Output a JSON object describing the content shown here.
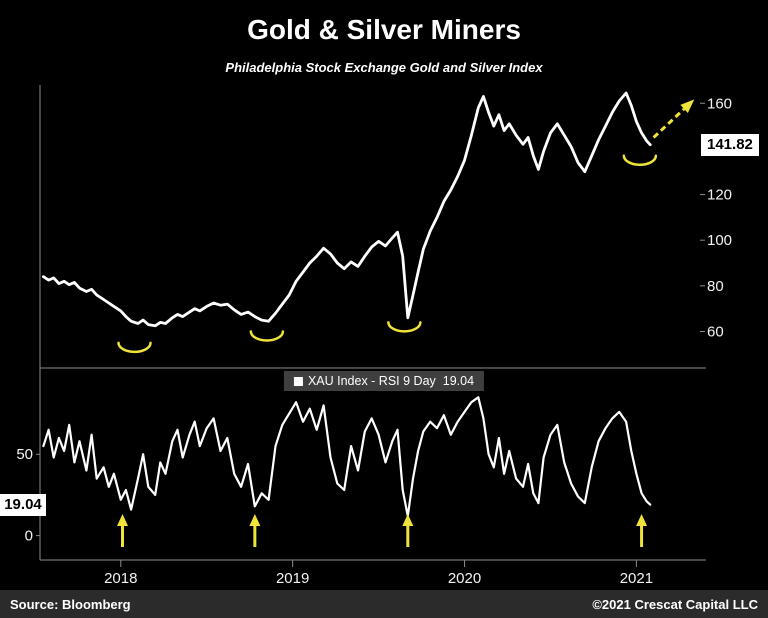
{
  "title": "Gold & Silver Miners",
  "subtitle": "Philadelphia Stock Exchange Gold and Silver Index",
  "footer": {
    "source": "Source: Bloomberg",
    "copyright": "©2021 Crescat Capital LLC"
  },
  "legend": {
    "label": "XAU Index - RSI 9 Day"
  },
  "colors": {
    "background": "#000000",
    "line": "#ffffff",
    "annotation_yellow": "#efe23a",
    "frame": "#8c8c8c",
    "legend_bg": "#3f3f3f",
    "footer_bg": "#2b2b2b",
    "badge_bg": "#ffffff",
    "badge_text": "#000000",
    "axis_text": "#f2f2f2"
  },
  "x_axis": {
    "tick_positions": [
      2018.5,
      2019.5,
      2020.5,
      2021.5
    ],
    "tick_labels": [
      "2018",
      "2019",
      "2020",
      "2021"
    ]
  },
  "chart_data": [
    {
      "type": "line",
      "panel": "price",
      "name": "XAU Index",
      "xlim": [
        2018.03,
        2021.87
      ],
      "ylim": [
        44,
        168
      ],
      "ytick_values": [
        60,
        80,
        100,
        120,
        160
      ],
      "last_value": 141.82,
      "grid": false,
      "legend_position": "none",
      "points": [
        [
          2018.05,
          84
        ],
        [
          2018.08,
          82.5
        ],
        [
          2018.11,
          83.5
        ],
        [
          2018.14,
          81
        ],
        [
          2018.17,
          82
        ],
        [
          2018.2,
          80.5
        ],
        [
          2018.23,
          81.5
        ],
        [
          2018.26,
          79
        ],
        [
          2018.3,
          77.5
        ],
        [
          2018.33,
          78.5
        ],
        [
          2018.36,
          76
        ],
        [
          2018.4,
          74
        ],
        [
          2018.43,
          72.5
        ],
        [
          2018.46,
          71
        ],
        [
          2018.5,
          69
        ],
        [
          2018.53,
          66.5
        ],
        [
          2018.56,
          64.5
        ],
        [
          2018.6,
          63.5
        ],
        [
          2018.63,
          65
        ],
        [
          2018.66,
          63
        ],
        [
          2018.7,
          62.5
        ],
        [
          2018.73,
          64
        ],
        [
          2018.76,
          63.5
        ],
        [
          2018.8,
          66
        ],
        [
          2018.83,
          67.5
        ],
        [
          2018.86,
          66.5
        ],
        [
          2018.9,
          68.5
        ],
        [
          2018.93,
          70
        ],
        [
          2018.96,
          69
        ],
        [
          2019,
          71
        ],
        [
          2019.04,
          72.5
        ],
        [
          2019.08,
          71.5
        ],
        [
          2019.12,
          72
        ],
        [
          2019.16,
          69.5
        ],
        [
          2019.2,
          67.5
        ],
        [
          2019.24,
          68.5
        ],
        [
          2019.28,
          66.5
        ],
        [
          2019.32,
          65
        ],
        [
          2019.36,
          64.5
        ],
        [
          2019.4,
          68
        ],
        [
          2019.44,
          72
        ],
        [
          2019.48,
          76
        ],
        [
          2019.52,
          82
        ],
        [
          2019.56,
          86
        ],
        [
          2019.6,
          90
        ],
        [
          2019.64,
          93
        ],
        [
          2019.68,
          96.5
        ],
        [
          2019.72,
          94
        ],
        [
          2019.76,
          90
        ],
        [
          2019.8,
          87.5
        ],
        [
          2019.84,
          90.5
        ],
        [
          2019.88,
          88.5
        ],
        [
          2019.92,
          93
        ],
        [
          2019.96,
          97
        ],
        [
          2020,
          99.5
        ],
        [
          2020.04,
          97.5
        ],
        [
          2020.08,
          101
        ],
        [
          2020.11,
          103.5
        ],
        [
          2020.14,
          93
        ],
        [
          2020.17,
          66
        ],
        [
          2020.2,
          76
        ],
        [
          2020.23,
          86
        ],
        [
          2020.26,
          96
        ],
        [
          2020.3,
          104
        ],
        [
          2020.34,
          110
        ],
        [
          2020.38,
          117
        ],
        [
          2020.42,
          122
        ],
        [
          2020.46,
          128
        ],
        [
          2020.5,
          135
        ],
        [
          2020.54,
          146
        ],
        [
          2020.58,
          158
        ],
        [
          2020.61,
          163
        ],
        [
          2020.64,
          156
        ],
        [
          2020.67,
          150
        ],
        [
          2020.7,
          155
        ],
        [
          2020.73,
          148
        ],
        [
          2020.76,
          151
        ],
        [
          2020.8,
          146
        ],
        [
          2020.84,
          142
        ],
        [
          2020.87,
          145
        ],
        [
          2020.9,
          137
        ],
        [
          2020.93,
          131
        ],
        [
          2020.96,
          139
        ],
        [
          2021,
          147
        ],
        [
          2021.04,
          151
        ],
        [
          2021.08,
          146
        ],
        [
          2021.12,
          141
        ],
        [
          2021.16,
          134
        ],
        [
          2021.2,
          130
        ],
        [
          2021.24,
          137
        ],
        [
          2021.28,
          144
        ],
        [
          2021.32,
          150
        ],
        [
          2021.36,
          156
        ],
        [
          2021.4,
          161
        ],
        [
          2021.44,
          164.5
        ],
        [
          2021.47,
          159
        ],
        [
          2021.5,
          152
        ],
        [
          2021.53,
          147
        ],
        [
          2021.56,
          143.5
        ],
        [
          2021.58,
          141.82
        ]
      ],
      "annotations": {
        "smiles": [
          {
            "x": 2018.58,
            "y": 55
          },
          {
            "x": 2019.35,
            "y": 60
          },
          {
            "x": 2020.15,
            "y": 64
          },
          {
            "x": 2021.52,
            "y": 137
          }
        ],
        "dashed_arrow": {
          "x1": 2021.6,
          "y1": 145,
          "x2": 2021.82,
          "y2": 160.5
        }
      }
    },
    {
      "type": "line",
      "panel": "rsi",
      "name": "XAU Index - RSI 9 Day",
      "xlim": [
        2018.03,
        2021.87
      ],
      "ylim": [
        -15,
        103
      ],
      "ytick_values": [
        0,
        50
      ],
      "last_value": 19.04,
      "grid": false,
      "legend_position": "top-center",
      "points": [
        [
          2018.05,
          55
        ],
        [
          2018.08,
          65
        ],
        [
          2018.11,
          48
        ],
        [
          2018.14,
          60
        ],
        [
          2018.17,
          52
        ],
        [
          2018.2,
          68
        ],
        [
          2018.23,
          45
        ],
        [
          2018.26,
          58
        ],
        [
          2018.3,
          40
        ],
        [
          2018.33,
          62
        ],
        [
          2018.36,
          35
        ],
        [
          2018.4,
          42
        ],
        [
          2018.43,
          30
        ],
        [
          2018.46,
          38
        ],
        [
          2018.5,
          22
        ],
        [
          2018.53,
          28
        ],
        [
          2018.56,
          16
        ],
        [
          2018.6,
          35
        ],
        [
          2018.63,
          50
        ],
        [
          2018.66,
          30
        ],
        [
          2018.7,
          25
        ],
        [
          2018.73,
          45
        ],
        [
          2018.76,
          38
        ],
        [
          2018.8,
          58
        ],
        [
          2018.83,
          65
        ],
        [
          2018.86,
          48
        ],
        [
          2018.9,
          62
        ],
        [
          2018.93,
          70
        ],
        [
          2018.96,
          55
        ],
        [
          2019,
          66
        ],
        [
          2019.04,
          72
        ],
        [
          2019.08,
          52
        ],
        [
          2019.12,
          60
        ],
        [
          2019.16,
          38
        ],
        [
          2019.2,
          30
        ],
        [
          2019.24,
          44
        ],
        [
          2019.28,
          18
        ],
        [
          2019.32,
          26
        ],
        [
          2019.36,
          22
        ],
        [
          2019.4,
          55
        ],
        [
          2019.44,
          68
        ],
        [
          2019.48,
          75
        ],
        [
          2019.52,
          82
        ],
        [
          2019.56,
          70
        ],
        [
          2019.6,
          78
        ],
        [
          2019.64,
          65
        ],
        [
          2019.68,
          80
        ],
        [
          2019.72,
          48
        ],
        [
          2019.76,
          32
        ],
        [
          2019.8,
          28
        ],
        [
          2019.84,
          55
        ],
        [
          2019.88,
          40
        ],
        [
          2019.92,
          64
        ],
        [
          2019.96,
          72
        ],
        [
          2020,
          62
        ],
        [
          2020.04,
          45
        ],
        [
          2020.08,
          58
        ],
        [
          2020.11,
          65
        ],
        [
          2020.14,
          28
        ],
        [
          2020.17,
          12
        ],
        [
          2020.2,
          35
        ],
        [
          2020.23,
          52
        ],
        [
          2020.26,
          64
        ],
        [
          2020.3,
          70
        ],
        [
          2020.34,
          66
        ],
        [
          2020.38,
          74
        ],
        [
          2020.42,
          62
        ],
        [
          2020.46,
          70
        ],
        [
          2020.5,
          76
        ],
        [
          2020.54,
          82
        ],
        [
          2020.58,
          85
        ],
        [
          2020.61,
          72
        ],
        [
          2020.64,
          50
        ],
        [
          2020.67,
          42
        ],
        [
          2020.7,
          60
        ],
        [
          2020.73,
          38
        ],
        [
          2020.76,
          52
        ],
        [
          2020.8,
          35
        ],
        [
          2020.84,
          30
        ],
        [
          2020.87,
          44
        ],
        [
          2020.9,
          26
        ],
        [
          2020.93,
          20
        ],
        [
          2020.96,
          48
        ],
        [
          2021,
          62
        ],
        [
          2021.04,
          68
        ],
        [
          2021.08,
          45
        ],
        [
          2021.12,
          32
        ],
        [
          2021.16,
          24
        ],
        [
          2021.2,
          20
        ],
        [
          2021.24,
          42
        ],
        [
          2021.28,
          58
        ],
        [
          2021.32,
          66
        ],
        [
          2021.36,
          72
        ],
        [
          2021.4,
          76
        ],
        [
          2021.44,
          70
        ],
        [
          2021.47,
          52
        ],
        [
          2021.5,
          38
        ],
        [
          2021.53,
          26
        ],
        [
          2021.56,
          21
        ],
        [
          2021.58,
          19.04
        ]
      ],
      "arrows_x": [
        2018.51,
        2019.28,
        2020.17,
        2021.53
      ]
    }
  ]
}
